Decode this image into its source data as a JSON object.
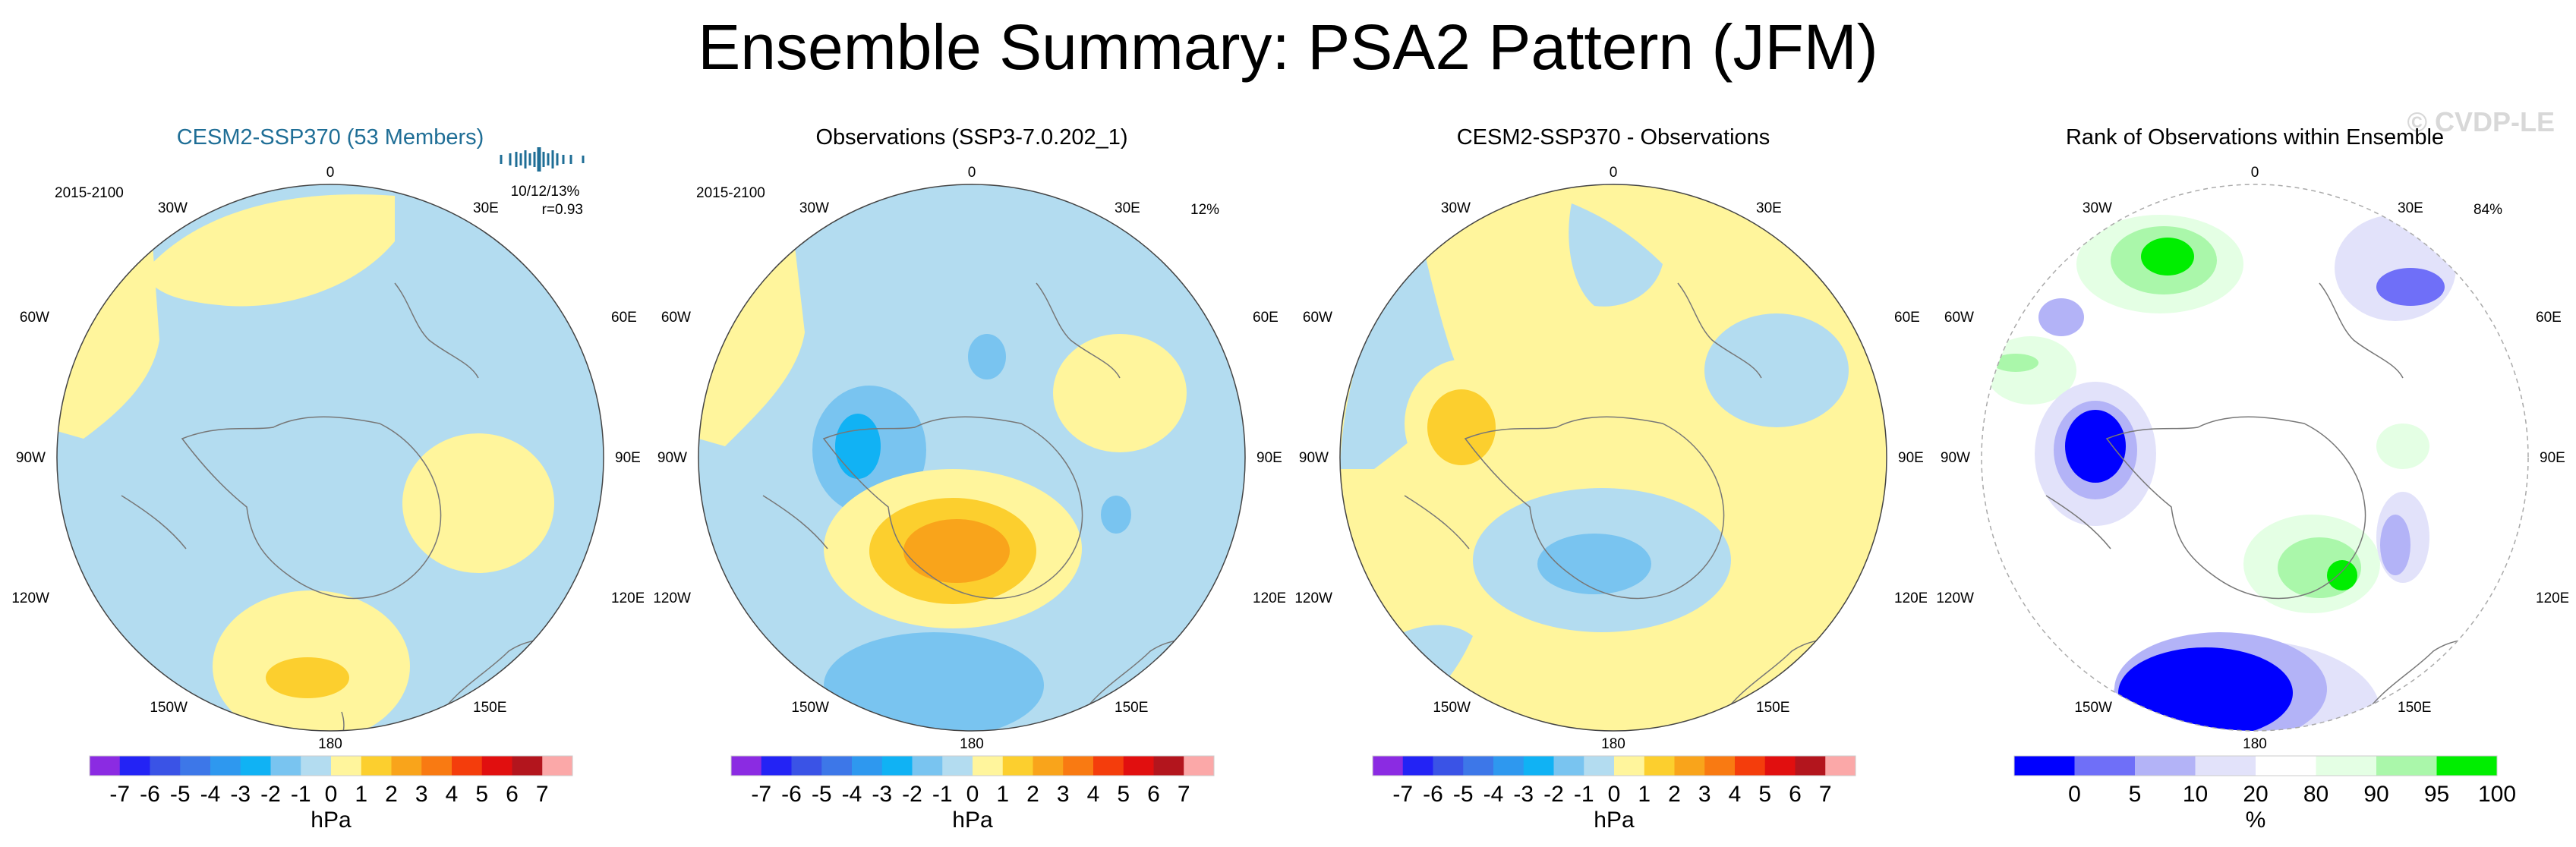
{
  "title": "Ensemble Summary: PSA2 Pattern (JFM)",
  "watermark": "© CVDP-LE",
  "colors": {
    "lightblue": "#b3dcf0",
    "yellow": "#fff59c",
    "gold": "#fccf2e",
    "orange": "#f9a41b",
    "blue_mid": "#79c4f0",
    "blue_deep": "#11b2f4",
    "title_teal": "#1f6e96",
    "rank_blue": "#0000ff",
    "rank_green": "#00ee00"
  },
  "lon_labels": [
    "0",
    "30E",
    "60E",
    "90E",
    "120E",
    "150E",
    "180",
    "150W",
    "120W",
    "90W",
    "60W",
    "30W"
  ],
  "panels": [
    {
      "title": "CESM2-SSP370 (53 Members)",
      "period": "2015-2100",
      "stats1": "10/12/13%",
      "stats2": "r=0.93",
      "pct": ""
    },
    {
      "title": "Observations (SSP3-7.0.202_1)",
      "period": "2015-2100",
      "stats1": "",
      "stats2": "",
      "pct": "12%"
    },
    {
      "title": "CESM2-SSP370 - Observations",
      "period": "",
      "stats1": "",
      "stats2": "",
      "pct": ""
    },
    {
      "title": "Rank of Observations within Ensemble",
      "period": "",
      "stats1": "",
      "stats2": "",
      "pct": "84%"
    }
  ],
  "chart_data": [
    {
      "type": "heatmap",
      "projection": "south polar stereographic",
      "field": "PSA2 pattern (ensemble mean)",
      "colorbar": {
        "unit": "hPa",
        "ticks": [
          "-7",
          "-6",
          "-5",
          "-4",
          "-3",
          "-2",
          "-1",
          "0",
          "1",
          "2",
          "3",
          "4",
          "5",
          "6",
          "7"
        ],
        "colors": [
          "#8b2be2",
          "#2323f5",
          "#3a53e6",
          "#3d77e8",
          "#2e98ef",
          "#10b2f4",
          "#79c4f0",
          "#b3dcf0",
          "#fff59c",
          "#fccf2e",
          "#f9a41b",
          "#f97a12",
          "#f43d0c",
          "#e10f0f",
          "#b3151d",
          "#fba8a8"
        ]
      }
    },
    {
      "type": "heatmap",
      "projection": "south polar stereographic",
      "field": "PSA2 pattern (observations)",
      "colorbar": {
        "unit": "hPa",
        "ticks": [
          "-7",
          "-6",
          "-5",
          "-4",
          "-3",
          "-2",
          "-1",
          "0",
          "1",
          "2",
          "3",
          "4",
          "5",
          "6",
          "7"
        ]
      }
    },
    {
      "type": "heatmap",
      "projection": "south polar stereographic",
      "field": "difference (model - obs)",
      "colorbar": {
        "unit": "hPa",
        "ticks": [
          "-7",
          "-6",
          "-5",
          "-4",
          "-3",
          "-2",
          "-1",
          "0",
          "1",
          "2",
          "3",
          "4",
          "5",
          "6",
          "7"
        ]
      }
    },
    {
      "type": "heatmap",
      "projection": "south polar stereographic",
      "field": "rank of observations within ensemble",
      "colorbar": {
        "unit": "%",
        "ticks": [
          "0",
          "5",
          "10",
          "20",
          "80",
          "90",
          "95",
          "100"
        ],
        "colors": [
          "#0000ff",
          "#6f6ff8",
          "#b3b3f7",
          "#e2e2fa",
          "#ffffff",
          "#e4ffe4",
          "#aaf7aa",
          "#00ee00"
        ]
      }
    }
  ]
}
